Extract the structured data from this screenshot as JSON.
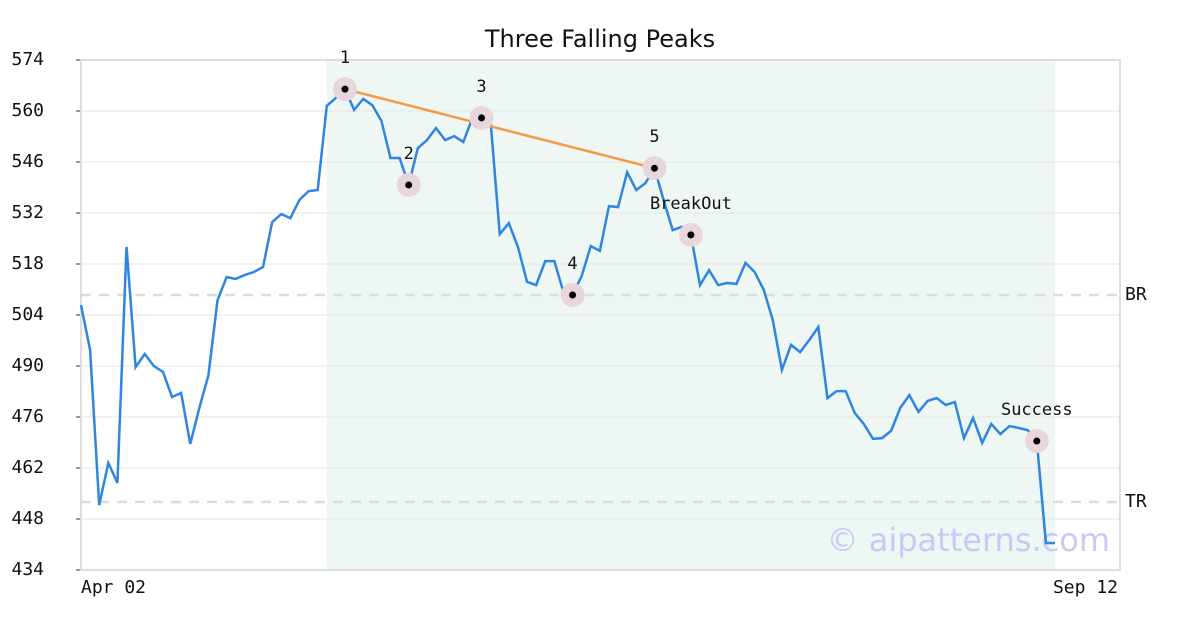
{
  "chart_data": {
    "type": "line",
    "title": "Three Falling Peaks",
    "categories": [
      "Apr 02",
      null,
      null,
      null,
      null,
      null,
      null,
      null,
      null,
      null,
      null,
      null,
      null,
      null,
      null,
      null,
      null,
      null,
      null,
      null,
      null,
      null,
      null,
      null,
      null,
      null,
      null,
      null,
      null,
      null,
      null,
      null,
      null,
      null,
      null,
      null,
      null,
      null,
      null,
      null,
      null,
      null,
      null,
      null,
      null,
      null,
      null,
      null,
      null,
      null,
      null,
      null,
      null,
      null,
      null,
      null,
      null,
      null,
      null,
      null,
      null,
      null,
      null,
      null,
      null,
      null,
      null,
      null,
      null,
      null,
      null,
      null,
      null,
      null,
      null,
      null,
      null,
      null,
      null,
      null,
      null,
      null,
      null,
      null,
      null,
      null,
      null,
      null,
      null,
      null,
      null,
      null,
      null,
      null,
      null,
      null,
      null,
      null,
      null,
      null,
      null,
      null,
      null,
      null,
      null,
      null,
      null,
      "Sep 12"
    ],
    "series": [
      {
        "color": "#2e86e0",
        "values": [
          506.7,
          494.4,
          451.8,
          463.4,
          457.9,
          522.7,
          489.7,
          493.3,
          490,
          488.4,
          481.5,
          482.6,
          468.6,
          478.5,
          487.5,
          508.1,
          514.4,
          513.9,
          515,
          515.8,
          517.2,
          529.5,
          531.7,
          530.6,
          535.6,
          538,
          538.3,
          561.4,
          563.6,
          566,
          560.3,
          563.3,
          561.6,
          557.3,
          547.1,
          547.1,
          539.7,
          549.8,
          552,
          555.3,
          552,
          553.1,
          551.5,
          558.1,
          558.1,
          557,
          526.2,
          529.2,
          522.7,
          513.1,
          512.2,
          518.8,
          518.8,
          510.3,
          509.5,
          514.7,
          522.9,
          521.6,
          533.9,
          533.6,
          543.2,
          538.3,
          540.2,
          544.3,
          535.6,
          527.3,
          528.2,
          526,
          512.2,
          516.3,
          512.2,
          512.8,
          512.5,
          518.3,
          515.8,
          510.9,
          502.6,
          488.9,
          495.8,
          493.8,
          497.1,
          500.7,
          481.2,
          483.1,
          483.1,
          477.1,
          474.1,
          470,
          470.2,
          472.2,
          478.5,
          482,
          477.4,
          480.4,
          481.2,
          479.3,
          480.1,
          470.2,
          475.7,
          468.9,
          474.1,
          471.3,
          473.5,
          473,
          472.4,
          469.4,
          441.4,
          441.4
        ]
      }
    ],
    "ylim": [
      434,
      574
    ],
    "yticks": [
      434,
      448,
      462,
      476,
      490,
      504,
      518,
      532,
      546,
      560,
      574
    ],
    "grid": true,
    "annotations": [
      {
        "label": "1",
        "x": 29,
        "value": 566
      },
      {
        "label": "2",
        "x": 36,
        "value": 539.7
      },
      {
        "label": "3",
        "x": 44,
        "value": 558.1
      },
      {
        "label": "4",
        "x": 54,
        "value": 509.5
      },
      {
        "label": "5",
        "x": 63,
        "value": 544.3
      },
      {
        "label": "BreakOut",
        "x": 67,
        "value": 526
      },
      {
        "label": "Success",
        "x": 105,
        "value": 469.4
      }
    ],
    "trendline": {
      "color": "#f59a45",
      "x": [
        29,
        63
      ],
      "values": [
        566,
        544.3
      ]
    },
    "hlines": [
      {
        "label": "BR",
        "value": 509.5
      },
      {
        "label": "TR",
        "value": 452.7
      }
    ],
    "shade": {
      "from": 27,
      "to": 107,
      "color": "#eef7f3"
    },
    "watermark": "© aipatterns.com"
  }
}
